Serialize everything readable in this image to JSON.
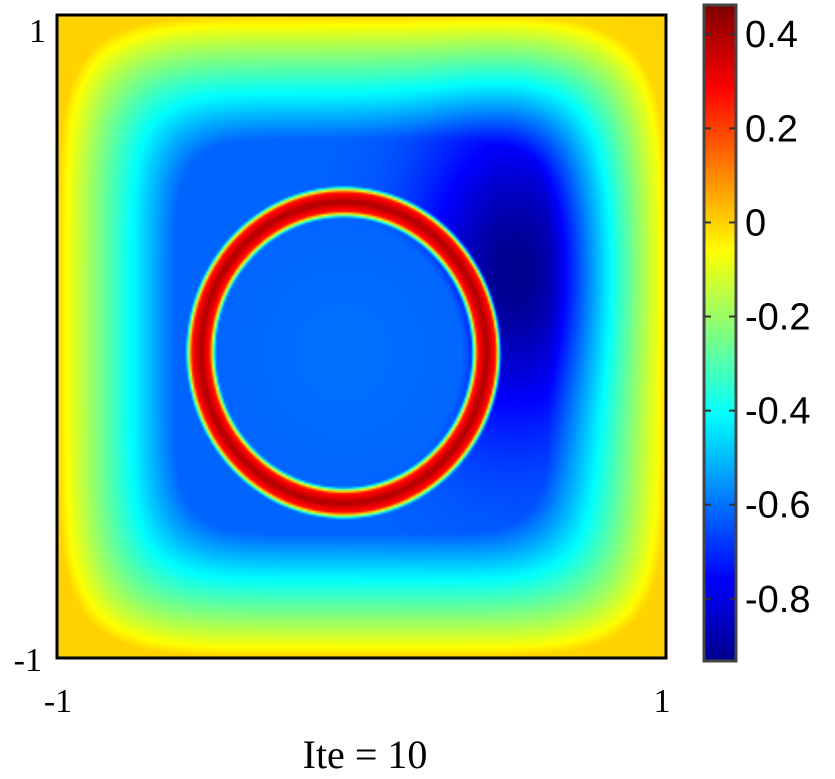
{
  "chart_data": {
    "type": "heatmap",
    "title": "",
    "xlabel": "Ite = 10",
    "ylabel": "",
    "xlim": [
      -1,
      1
    ],
    "ylim": [
      -1,
      1
    ],
    "x_ticks": [
      "-1",
      "1"
    ],
    "y_ticks": [
      "1",
      "-1"
    ],
    "colormap": "jet",
    "colorbar": {
      "range": [
        -0.93,
        0.46
      ],
      "ticks": [
        "0.4",
        "0.2",
        "0",
        "-0.2",
        "-0.4",
        "-0.6",
        "-0.8"
      ],
      "tick_values": [
        0.4,
        0.2,
        0,
        -0.2,
        -0.4,
        -0.6,
        -0.8
      ],
      "position": "right"
    },
    "field": {
      "description_values": {
        "boundary_value": 0.0,
        "ring_center": [
          -0.06,
          -0.05
        ],
        "ring_radius": 0.47,
        "ring_value": 0.4,
        "inner_min_value": -0.62,
        "outer_min_value": -0.91,
        "outer_min_location": [
          0.5,
          0.2
        ]
      }
    },
    "grid": false
  }
}
